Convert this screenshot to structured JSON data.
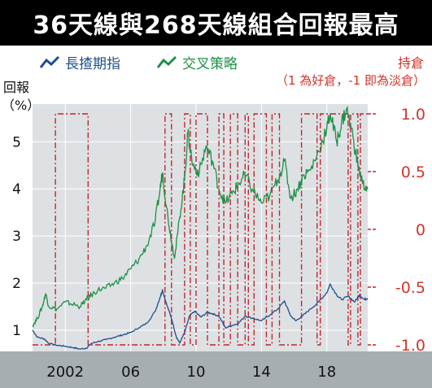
{
  "title": "36天線與268天線組合回報最高",
  "legend": [
    {
      "name": "長揸期指",
      "color": "#1f4e8c"
    },
    {
      "name": "交叉策略",
      "color": "#1e9046"
    }
  ],
  "left_axis_title": {
    "line1": "回報",
    "line2": "（%）"
  },
  "right_axis_title": {
    "line1": "持倉",
    "line2": "（1 為好倉，-1 即為淡倉）"
  },
  "colors": {
    "position": "#c0272d",
    "right_axis_text": "#d0342c",
    "plot_bg": "#dde1e4",
    "axis_band": "#a7aeb2"
  },
  "chart_data": {
    "type": "line",
    "x_range": [
      2000.0,
      2020.5
    ],
    "y_left": {
      "range": [
        0.55,
        5.8
      ],
      "ticks": [
        1,
        2,
        3,
        4,
        5
      ]
    },
    "y_right": {
      "range": [
        -1.0,
        1.0
      ],
      "ticks": [
        "1.0",
        "0.5",
        "0",
        "-0.5",
        "-1.0"
      ],
      "tick_values": [
        1.0,
        0.5,
        0,
        -0.5,
        -1.0
      ]
    },
    "x_ticks": [
      {
        "label": "2002",
        "value": 2002
      },
      {
        "label": "06",
        "value": 2006
      },
      {
        "label": "10",
        "value": 2010
      },
      {
        "label": "14",
        "value": 2014
      },
      {
        "label": "18",
        "value": 2018
      }
    ],
    "series": [
      {
        "name": "長揸期指",
        "points": [
          [
            2000.0,
            1.0
          ],
          [
            2000.3,
            0.85
          ],
          [
            2000.7,
            0.82
          ],
          [
            2001.0,
            0.72
          ],
          [
            2001.5,
            0.68
          ],
          [
            2002.0,
            0.66
          ],
          [
            2002.5,
            0.63
          ],
          [
            2002.9,
            0.6
          ],
          [
            2003.3,
            0.62
          ],
          [
            2003.6,
            0.72
          ],
          [
            2004.0,
            0.76
          ],
          [
            2004.5,
            0.8
          ],
          [
            2005.0,
            0.85
          ],
          [
            2005.5,
            0.9
          ],
          [
            2006.0,
            0.95
          ],
          [
            2006.5,
            1.05
          ],
          [
            2007.0,
            1.15
          ],
          [
            2007.5,
            1.4
          ],
          [
            2007.8,
            1.7
          ],
          [
            2007.95,
            1.85
          ],
          [
            2008.2,
            1.55
          ],
          [
            2008.5,
            1.25
          ],
          [
            2008.8,
            0.85
          ],
          [
            2009.0,
            0.73
          ],
          [
            2009.3,
            0.95
          ],
          [
            2009.6,
            1.3
          ],
          [
            2009.9,
            1.4
          ],
          [
            2010.3,
            1.28
          ],
          [
            2010.7,
            1.38
          ],
          [
            2011.0,
            1.35
          ],
          [
            2011.4,
            1.3
          ],
          [
            2011.8,
            1.05
          ],
          [
            2012.2,
            1.1
          ],
          [
            2012.6,
            1.15
          ],
          [
            2013.0,
            1.3
          ],
          [
            2013.5,
            1.25
          ],
          [
            2014.0,
            1.2
          ],
          [
            2014.5,
            1.32
          ],
          [
            2015.0,
            1.45
          ],
          [
            2015.4,
            1.62
          ],
          [
            2015.8,
            1.3
          ],
          [
            2016.1,
            1.2
          ],
          [
            2016.5,
            1.3
          ],
          [
            2017.0,
            1.45
          ],
          [
            2017.5,
            1.6
          ],
          [
            2018.0,
            1.8
          ],
          [
            2018.2,
            1.98
          ],
          [
            2018.6,
            1.75
          ],
          [
            2018.9,
            1.65
          ],
          [
            2019.3,
            1.72
          ],
          [
            2019.7,
            1.6
          ],
          [
            2020.0,
            1.75
          ],
          [
            2020.3,
            1.65
          ],
          [
            2020.5,
            1.68
          ]
        ]
      },
      {
        "name": "交叉策略",
        "points": [
          [
            2000.0,
            1.1
          ],
          [
            2000.3,
            1.25
          ],
          [
            2000.6,
            1.5
          ],
          [
            2000.8,
            1.78
          ],
          [
            2001.0,
            1.5
          ],
          [
            2001.5,
            1.45
          ],
          [
            2002.0,
            1.6
          ],
          [
            2002.5,
            1.55
          ],
          [
            2002.9,
            1.5
          ],
          [
            2003.3,
            1.65
          ],
          [
            2003.6,
            1.75
          ],
          [
            2004.0,
            1.85
          ],
          [
            2004.5,
            1.9
          ],
          [
            2005.0,
            2.0
          ],
          [
            2005.5,
            2.1
          ],
          [
            2006.0,
            2.3
          ],
          [
            2006.5,
            2.5
          ],
          [
            2007.0,
            2.8
          ],
          [
            2007.5,
            3.3
          ],
          [
            2007.8,
            4.0
          ],
          [
            2007.95,
            4.35
          ],
          [
            2008.2,
            3.6
          ],
          [
            2008.5,
            2.9
          ],
          [
            2008.7,
            2.55
          ],
          [
            2009.0,
            3.4
          ],
          [
            2009.3,
            4.2
          ],
          [
            2009.5,
            5.2
          ],
          [
            2009.8,
            4.5
          ],
          [
            2010.2,
            4.35
          ],
          [
            2010.6,
            4.9
          ],
          [
            2011.0,
            4.6
          ],
          [
            2011.4,
            4.0
          ],
          [
            2011.8,
            3.7
          ],
          [
            2012.2,
            3.9
          ],
          [
            2012.6,
            4.1
          ],
          [
            2013.0,
            4.3
          ],
          [
            2013.5,
            3.95
          ],
          [
            2014.0,
            3.7
          ],
          [
            2014.5,
            3.85
          ],
          [
            2015.0,
            4.2
          ],
          [
            2015.4,
            4.6
          ],
          [
            2015.8,
            3.8
          ],
          [
            2016.2,
            4.0
          ],
          [
            2016.6,
            4.3
          ],
          [
            2017.0,
            4.4
          ],
          [
            2017.5,
            4.8
          ],
          [
            2018.0,
            5.3
          ],
          [
            2018.2,
            5.6
          ],
          [
            2018.6,
            5.0
          ],
          [
            2018.9,
            5.4
          ],
          [
            2019.2,
            5.7
          ],
          [
            2019.6,
            5.1
          ],
          [
            2019.9,
            4.5
          ],
          [
            2020.2,
            4.1
          ],
          [
            2020.5,
            4.0
          ]
        ]
      }
    ],
    "position_series": {
      "name": "持倉",
      "values": [
        -1,
        1
      ],
      "switch_years": [
        2000.0,
        2001.4,
        2003.4,
        2008.1,
        2008.5,
        2009.3,
        2009.65,
        2010.0,
        2010.7,
        2011.4,
        2011.7,
        2012.1,
        2012.55,
        2013.0,
        2013.2,
        2013.55,
        2014.3,
        2014.65,
        2015.1,
        2016.45,
        2017.4,
        2017.6,
        2019.3,
        2019.45,
        2019.9,
        2020.05,
        2020.5
      ],
      "start_value": -1
    }
  }
}
